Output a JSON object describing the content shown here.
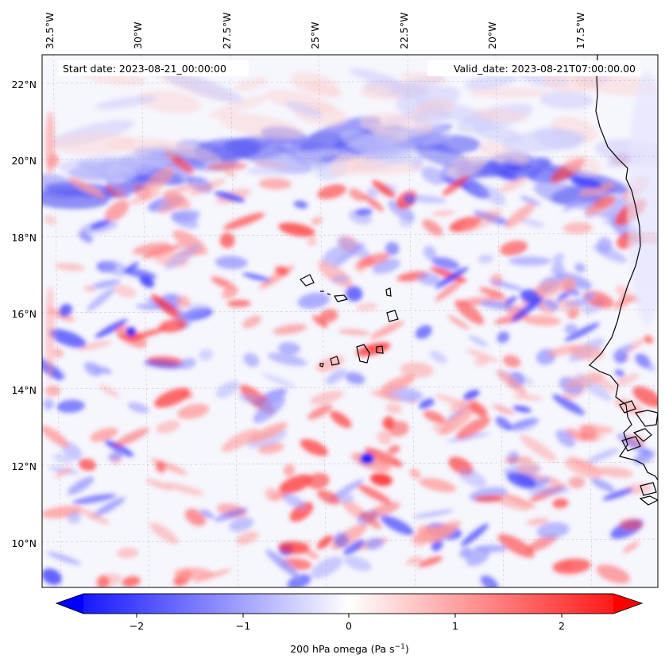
{
  "header": {
    "start_date": "Start date: 2023-08-21_00:00:00",
    "valid_date": "Valid_date: 2023-08-21T07:00:00.00"
  },
  "map": {
    "variable": "200 hPa omega",
    "lon_range": [
      -32.6,
      -15.9
    ],
    "lat_range": [
      8.8,
      22.8
    ],
    "lon_labels": [
      "32.5°W",
      "30°W",
      "27.5°W",
      "25°W",
      "22.5°W",
      "20°W",
      "17.5°W"
    ],
    "lat_labels": [
      "22°N",
      "20°N",
      "18°N",
      "16°N",
      "14°N",
      "12°N",
      "10°N"
    ],
    "gridlines": true,
    "features": [
      "Cape Verde islands outline",
      "West African coastline (Mauritania, Senegal, Guinea-Bissau)"
    ]
  },
  "colorbar": {
    "label": "200 hPa omega (Pa s",
    "unit_superscript": "−1",
    "label_close": ")",
    "ticks": [
      "−2",
      "−1",
      "0",
      "1",
      "2"
    ],
    "range": [
      -2.75,
      2.75
    ],
    "colormap": "bwr",
    "colors": {
      "negative": "#0000ff",
      "zero": "#ffffff",
      "positive": "#ff0000"
    },
    "extend": "both"
  }
}
